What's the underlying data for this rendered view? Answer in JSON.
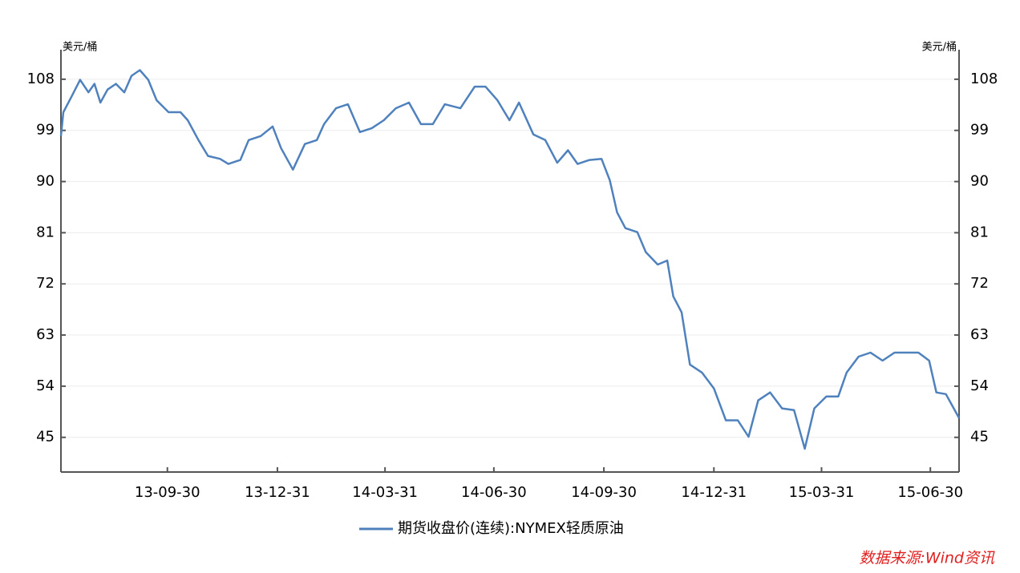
{
  "chart_data": {
    "type": "line",
    "y_label": "美元/桶",
    "y2_label": "美元/桶",
    "source": "数据来源:Wind资讯",
    "x": [
      "13-07-03",
      "13-07-05",
      "13-07-12",
      "13-07-19",
      "13-07-26",
      "13-07-31",
      "13-08-05",
      "13-08-11",
      "13-08-18",
      "13-08-25",
      "13-08-31",
      "13-09-07",
      "13-09-14",
      "13-09-21",
      "13-10-01",
      "13-10-11",
      "13-10-17",
      "13-10-26",
      "13-11-03",
      "13-11-13",
      "13-11-20",
      "13-11-30",
      "13-12-07",
      "13-12-17",
      "13-12-27",
      "14-01-03",
      "14-01-13",
      "14-01-23",
      "14-02-02",
      "14-02-08",
      "14-02-18",
      "14-02-28",
      "14-03-10",
      "14-03-20",
      "14-03-30",
      "14-04-09",
      "14-04-20",
      "14-04-30",
      "14-05-10",
      "14-05-20",
      "14-06-02",
      "14-06-14",
      "14-06-23",
      "14-07-03",
      "14-07-13",
      "14-07-21",
      "14-08-02",
      "14-08-12",
      "14-08-22",
      "14-08-31",
      "14-09-08",
      "14-09-18",
      "14-09-28",
      "14-10-05",
      "14-10-11",
      "14-10-18",
      "14-10-28",
      "14-11-04",
      "14-11-14",
      "14-11-22",
      "14-11-27",
      "14-12-04",
      "14-12-11",
      "14-12-21",
      "14-12-31",
      "15-01-10",
      "15-01-20",
      "15-01-29",
      "15-02-06",
      "15-02-16",
      "15-02-26",
      "15-03-08",
      "15-03-17",
      "15-03-25",
      "15-04-04",
      "15-04-14",
      "15-04-21",
      "15-05-01",
      "15-05-11",
      "15-05-21",
      "15-05-31",
      "15-06-10",
      "15-06-20",
      "15-06-29",
      "15-07-05",
      "15-07-13",
      "15-07-24"
    ],
    "series": [
      {
        "name": "期货收盘价(连续):NYMEX轻质原油",
        "color": "#4f81bd",
        "values": [
          98,
          102.2,
          105,
          107.9,
          105.7,
          107.2,
          103.9,
          106.2,
          107.2,
          105.7,
          108.6,
          109.6,
          107.9,
          104.3,
          102.2,
          102.2,
          100.8,
          97.3,
          94.5,
          94,
          93.1,
          93.8,
          97.3,
          98,
          99.7,
          95.9,
          92.1,
          96.6,
          97.3,
          100.1,
          102.9,
          103.6,
          98.7,
          99.4,
          100.8,
          102.9,
          103.9,
          100.1,
          100.1,
          103.6,
          102.9,
          106.7,
          106.7,
          104.3,
          100.8,
          103.9,
          98.3,
          97.3,
          93.3,
          95.5,
          93.1,
          93.8,
          94,
          90.2,
          84.6,
          81.8,
          81.1,
          77.6,
          75.4,
          76.1,
          69.8,
          67,
          57.8,
          56.4,
          53.6,
          48,
          48,
          45.1,
          51.5,
          52.9,
          50.1,
          49.8,
          43,
          50.1,
          52.2,
          52.2,
          56.4,
          59.2,
          59.9,
          58.5,
          59.9,
          59.9,
          59.9,
          58.5,
          52.9,
          52.6,
          48.4
        ]
      }
    ],
    "xlim": [
      "13-07-03",
      "15-07-24"
    ],
    "xticks": [
      "13-09-30",
      "13-12-31",
      "14-03-31",
      "14-06-30",
      "14-09-30",
      "14-12-31",
      "15-03-31",
      "15-06-30"
    ],
    "ylim": [
      38.9,
      113.2
    ],
    "yticks": [
      45,
      54,
      63,
      72,
      81,
      90,
      99,
      108
    ],
    "y2lim": [
      38.9,
      113.2
    ],
    "y2ticks": [
      45,
      54,
      63,
      72,
      81,
      90,
      99,
      108
    ],
    "grid": true
  }
}
